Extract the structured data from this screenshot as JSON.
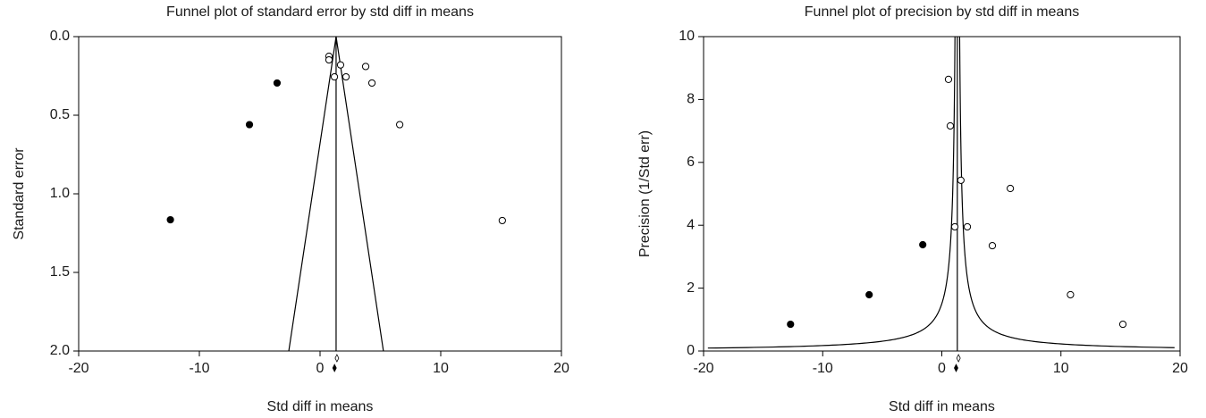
{
  "chart_data": [
    {
      "type": "funnel",
      "measure": "standard_error",
      "title": "Funnel plot of standard error by std diff in means",
      "x_label": "Std diff in means",
      "y_label": "Standard error",
      "xlim": [
        -20,
        20
      ],
      "xticks": [
        -20,
        -10,
        0,
        10,
        20
      ],
      "ylim": [
        0,
        2
      ],
      "yticks": [
        {
          "value": 0,
          "label": "0.0"
        },
        0.5,
        {
          "value": 1,
          "label": "1.0"
        },
        1.5,
        {
          "value": 2,
          "label": "2.0"
        }
      ],
      "y_inverted": true,
      "funnel_center": 1.33,
      "funnel_z": 1.96,
      "summary_x": [
        1.4,
        1.2
      ],
      "series": [
        {
          "color": "#ffffff",
          "x": [
            0.74,
            0.74,
            1.7,
            3.78,
            1.19,
            2.15,
            4.3,
            6.6,
            15.1
          ],
          "values": [
            0.125,
            0.148,
            0.18,
            0.19,
            0.256,
            0.256,
            0.295,
            0.56,
            1.17
          ]
        },
        {
          "color": "#000000",
          "x": [
            -3.56,
            -5.85,
            -12.4
          ],
          "values": [
            0.295,
            0.56,
            1.165
          ]
        }
      ]
    },
    {
      "type": "funnel",
      "measure": "precision",
      "title": "Funnel plot of precision by std diff in means",
      "x_label": "Std diff in means",
      "y_label": "Precision (1/Std err)",
      "xlim": [
        -20,
        20
      ],
      "xticks": [
        -20,
        -10,
        0,
        10,
        20
      ],
      "ylim": [
        0,
        10
      ],
      "yticks": [
        0,
        2,
        4,
        6,
        8,
        10
      ],
      "y_inverted": false,
      "funnel_center": 1.3,
      "funnel_z": 1.96,
      "summary_x": [
        1.4,
        1.2
      ],
      "series": [
        {
          "color": "#ffffff",
          "x": [
            0.56,
            0.71,
            1.6,
            5.75,
            1.09,
            2.14,
            4.24,
            10.8,
            15.2
          ],
          "values": [
            8.64,
            7.16,
            5.43,
            5.17,
            3.95,
            3.95,
            3.35,
            1.79,
            0.85
          ]
        },
        {
          "color": "#000000",
          "x": [
            -1.6,
            -6.1,
            -12.7
          ],
          "values": [
            3.38,
            1.79,
            0.85
          ]
        }
      ]
    }
  ]
}
